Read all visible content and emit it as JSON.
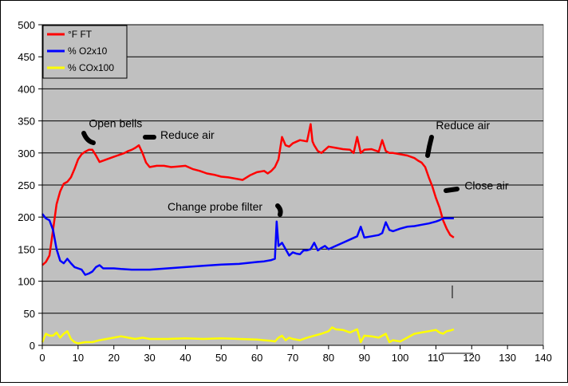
{
  "chart_data": {
    "type": "line",
    "xlim": [
      0,
      140
    ],
    "ylim": [
      0,
      500
    ],
    "x_ticks": [
      0,
      10,
      20,
      30,
      40,
      50,
      60,
      70,
      80,
      90,
      100,
      110,
      120,
      130,
      140
    ],
    "y_ticks": [
      0,
      50,
      100,
      150,
      200,
      250,
      300,
      350,
      400,
      450,
      500
    ],
    "grid": "horizontal",
    "background": "#c0c0c0",
    "legend_position": "top-left",
    "series": [
      {
        "name": "°F FT",
        "color": "#ff0000",
        "x": [
          0,
          1,
          2,
          3,
          4,
          5,
          6,
          7,
          8,
          9,
          10,
          11,
          12,
          13,
          14,
          15,
          16,
          17,
          18,
          19,
          20,
          21,
          22,
          23,
          24,
          25,
          26,
          27,
          28,
          29,
          30,
          32,
          34,
          36,
          38,
          40,
          42,
          44,
          46,
          48,
          50,
          52,
          54,
          56,
          58,
          60,
          62,
          63,
          64,
          65,
          66,
          67,
          68,
          69,
          70,
          72,
          74,
          75,
          75.5,
          76,
          77,
          78,
          79,
          80,
          82,
          84,
          86,
          87,
          88,
          89,
          90,
          92,
          94,
          95,
          96,
          97,
          98,
          100,
          102,
          104,
          105,
          106,
          107,
          108,
          109,
          110,
          111,
          112,
          113,
          114,
          115
        ],
        "values": [
          125,
          130,
          140,
          180,
          220,
          240,
          252,
          255,
          262,
          275,
          290,
          298,
          302,
          305,
          305,
          296,
          286,
          288,
          290,
          292,
          294,
          296,
          298,
          300,
          303,
          305,
          308,
          312,
          300,
          285,
          278,
          280,
          280,
          278,
          279,
          280,
          275,
          272,
          268,
          266,
          263,
          262,
          260,
          258,
          265,
          270,
          272,
          268,
          272,
          278,
          290,
          325,
          312,
          310,
          315,
          320,
          318,
          345,
          318,
          312,
          303,
          300,
          305,
          310,
          308,
          306,
          305,
          300,
          325,
          300,
          305,
          306,
          302,
          320,
          303,
          300,
          300,
          298,
          296,
          292,
          288,
          285,
          278,
          262,
          248,
          230,
          215,
          195,
          182,
          172,
          168
        ]
      },
      {
        "name": "% O2x10",
        "color": "#0000ff",
        "x": [
          0,
          1,
          2,
          3,
          4,
          5,
          6,
          7,
          8,
          9,
          10,
          11,
          12,
          13,
          14,
          15,
          16,
          17,
          18,
          20,
          22,
          25,
          30,
          35,
          40,
          45,
          50,
          55,
          60,
          62,
          64,
          65,
          65.5,
          66,
          67,
          68,
          69,
          70,
          71,
          72,
          73,
          74,
          75,
          76,
          77,
          78,
          79,
          80,
          82,
          84,
          86,
          88,
          89,
          90,
          92,
          94,
          95,
          96,
          97,
          98,
          100,
          102,
          104,
          106,
          108,
          110,
          111,
          112,
          113,
          114,
          115
        ],
        "values": [
          205,
          198,
          195,
          180,
          150,
          132,
          128,
          135,
          128,
          122,
          120,
          118,
          110,
          112,
          115,
          122,
          125,
          120,
          120,
          120,
          119,
          118,
          118,
          120,
          122,
          124,
          126,
          127,
          130,
          131,
          133,
          135,
          193,
          155,
          160,
          150,
          140,
          145,
          143,
          142,
          148,
          148,
          150,
          160,
          148,
          152,
          155,
          150,
          155,
          160,
          165,
          170,
          185,
          168,
          170,
          172,
          175,
          192,
          180,
          178,
          182,
          185,
          186,
          188,
          190,
          193,
          195,
          198,
          198,
          198,
          198
        ]
      },
      {
        "name": "% COx100",
        "color": "#ffff00",
        "x": [
          0,
          1,
          2,
          3,
          4,
          5,
          6,
          7,
          8,
          9,
          10,
          12,
          14,
          16,
          18,
          20,
          22,
          24,
          26,
          28,
          30,
          35,
          40,
          45,
          50,
          55,
          60,
          62,
          64,
          65,
          66,
          67,
          68,
          69,
          70,
          72,
          74,
          76,
          78,
          80,
          81,
          82,
          84,
          86,
          88,
          89,
          90,
          92,
          94,
          96,
          97,
          98,
          100,
          102,
          104,
          106,
          108,
          110,
          111,
          112,
          113,
          114,
          115
        ],
        "values": [
          5,
          18,
          15,
          15,
          20,
          12,
          18,
          22,
          10,
          5,
          3,
          5,
          5,
          8,
          10,
          12,
          14,
          12,
          10,
          12,
          10,
          10,
          11,
          10,
          11,
          10,
          9,
          8,
          7,
          6,
          12,
          15,
          8,
          12,
          10,
          8,
          12,
          15,
          18,
          22,
          28,
          25,
          24,
          20,
          25,
          5,
          15,
          14,
          12,
          18,
          5,
          8,
          6,
          12,
          18,
          20,
          22,
          24,
          20,
          18,
          22,
          23,
          25
        ]
      }
    ],
    "annotations": [
      {
        "text": "Open bells",
        "x": 13,
        "y": 340
      },
      {
        "text": "Reduce air",
        "x": 33,
        "y": 322
      },
      {
        "text": "Change probe filter",
        "x": 35,
        "y": 210
      },
      {
        "text": "Reduce air",
        "x": 110,
        "y": 337
      },
      {
        "text": "Close air",
        "x": 118,
        "y": 243
      }
    ]
  }
}
